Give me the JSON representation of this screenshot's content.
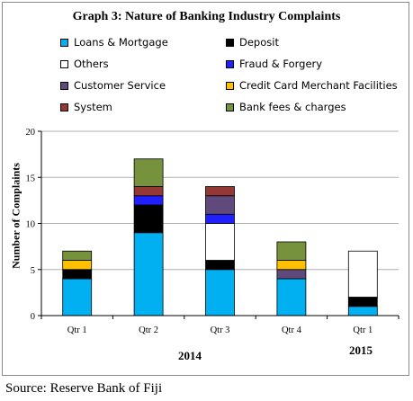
{
  "title": "Graph 3: Nature of Banking Industry Complaints",
  "source": "Source: Reserve Bank of Fiji",
  "legend": [
    {
      "label": "Loans & Mortgage",
      "color": "#00B0F0"
    },
    {
      "label": "Deposit",
      "color": "#000000"
    },
    {
      "label": "Others",
      "color": "#FFFFFF"
    },
    {
      "label": "Fraud & Forgery",
      "color": "#1F1FFF"
    },
    {
      "label": "Customer Service",
      "color": "#604A7B"
    },
    {
      "label": "Credit Card Merchant Facilities",
      "color": "#FFC000"
    },
    {
      "label": "System",
      "color": "#953735"
    },
    {
      "label": "Bank fees & charges",
      "color": "#76923C"
    }
  ],
  "years": [
    "2014",
    "2015"
  ],
  "chart_data": {
    "type": "bar",
    "stacked": true,
    "title": "Graph 3: Nature of Banking Industry Complaints",
    "xlabel": "",
    "ylabel": "Number of Complaints",
    "ylim": [
      0,
      20
    ],
    "yticks": [
      0,
      5,
      10,
      15,
      20
    ],
    "grid": true,
    "legend_position": "top",
    "categories": [
      "Qtr 1",
      "Qtr 2",
      "Qtr 3",
      "Qtr 4",
      "Qtr 1"
    ],
    "category_groups": [
      {
        "label": "2014",
        "categories": [
          0,
          1,
          2,
          3
        ]
      },
      {
        "label": "2015",
        "categories": [
          4
        ]
      }
    ],
    "series": [
      {
        "name": "Loans & Mortgage",
        "color": "#00B0F0",
        "values": [
          4,
          9,
          5,
          4,
          1
        ]
      },
      {
        "name": "Deposit",
        "color": "#000000",
        "values": [
          1,
          3,
          1,
          0,
          1
        ]
      },
      {
        "name": "Others",
        "color": "#FFFFFF",
        "values": [
          0,
          0,
          4,
          0,
          5
        ]
      },
      {
        "name": "Fraud & Forgery",
        "color": "#1F1FFF",
        "values": [
          0,
          1,
          1,
          0,
          0
        ]
      },
      {
        "name": "Customer Service",
        "color": "#604A7B",
        "values": [
          0,
          0,
          2,
          1,
          0
        ]
      },
      {
        "name": "Credit Card Merchant Facilities",
        "color": "#FFC000",
        "values": [
          1,
          0,
          0,
          1,
          0
        ]
      },
      {
        "name": "System",
        "color": "#953735",
        "values": [
          0,
          1,
          1,
          0,
          0
        ]
      },
      {
        "name": "Bank fees & charges",
        "color": "#76923C",
        "values": [
          1,
          3,
          0,
          2,
          0
        ]
      }
    ]
  }
}
